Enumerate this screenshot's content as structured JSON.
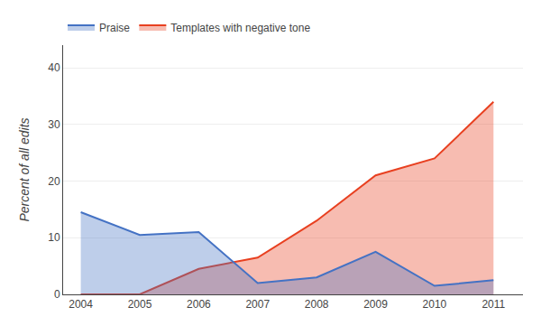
{
  "chart_data": {
    "type": "area",
    "x": [
      2004,
      2005,
      2006,
      2007,
      2008,
      2009,
      2010,
      2011
    ],
    "series": [
      {
        "name": "Praise",
        "color": "#4472C4",
        "values": [
          14.5,
          10.5,
          11.0,
          2.0,
          3.0,
          7.5,
          1.5,
          2.5
        ]
      },
      {
        "name": "Templates with negative tone",
        "color": "#E84020",
        "values": [
          0.0,
          0.0,
          4.5,
          6.5,
          13.0,
          21.0,
          24.0,
          34.0
        ]
      }
    ],
    "ylabel": "Percent of all edits",
    "xlim": [
      2003.7,
      2011.5
    ],
    "xticks": [
      2004,
      2005,
      2006,
      2007,
      2008,
      2009,
      2010,
      2011
    ],
    "ylim": [
      0,
      44
    ],
    "yticks": [
      0,
      10,
      20,
      30,
      40
    ],
    "grid": true,
    "legend": "upper left"
  }
}
